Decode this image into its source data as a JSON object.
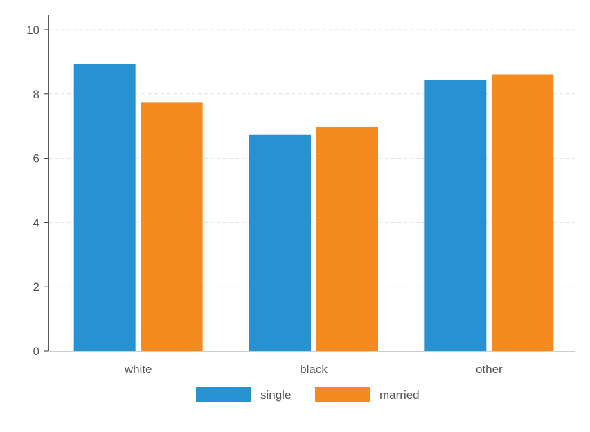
{
  "chart_data": {
    "type": "bar",
    "categories": [
      "white",
      "black",
      "other"
    ],
    "series": [
      {
        "name": "single",
        "color": "#2891D1",
        "values": [
          8.93,
          6.73,
          8.43
        ]
      },
      {
        "name": "married",
        "color": "#F58B20",
        "values": [
          7.73,
          6.97,
          8.61
        ]
      }
    ],
    "title": "",
    "xlabel": "",
    "ylabel": "",
    "ylim": [
      0,
      10
    ],
    "yticks": [
      0,
      2,
      4,
      6,
      8,
      10
    ],
    "grid": true,
    "legend_position": "bottom-center"
  }
}
